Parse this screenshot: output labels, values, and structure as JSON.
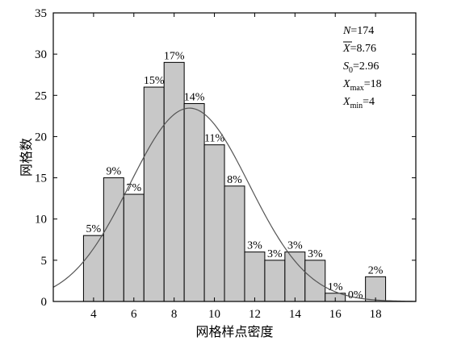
{
  "chart_data": {
    "type": "bar",
    "xlabel": "网格样点密度",
    "ylabel": "网格数",
    "ylim": [
      0,
      35
    ],
    "yticks": [
      0,
      5,
      10,
      15,
      20,
      25,
      30,
      35
    ],
    "xticks": [
      4,
      6,
      8,
      10,
      12,
      14,
      16,
      18
    ],
    "xlim": [
      2,
      20
    ],
    "bar_width": 1,
    "bars": [
      {
        "x": 4,
        "value": 8,
        "label": "5%"
      },
      {
        "x": 5,
        "value": 15,
        "label": "9%"
      },
      {
        "x": 6,
        "value": 13,
        "label": "7%"
      },
      {
        "x": 7,
        "value": 26,
        "label": "15%"
      },
      {
        "x": 8,
        "value": 29,
        "label": "17%"
      },
      {
        "x": 9,
        "value": 24,
        "label": "14%"
      },
      {
        "x": 10,
        "value": 19,
        "label": "11%"
      },
      {
        "x": 11,
        "value": 14,
        "label": "8%"
      },
      {
        "x": 12,
        "value": 6,
        "label": "3%"
      },
      {
        "x": 13,
        "value": 5,
        "label": "3%"
      },
      {
        "x": 14,
        "value": 6,
        "label": "3%"
      },
      {
        "x": 15,
        "value": 5,
        "label": "3%"
      },
      {
        "x": 16,
        "value": 1,
        "label": "1%"
      },
      {
        "x": 17,
        "value": 0,
        "label": "0%"
      },
      {
        "x": 18,
        "value": 3,
        "label": "2%"
      }
    ],
    "fit_curve": {
      "type": "normal",
      "mean": 8.76,
      "sd": 2.96,
      "n": 174,
      "bin_width": 1
    },
    "stats": [
      {
        "var": "N",
        "sub": "",
        "bar": false,
        "value": "=174"
      },
      {
        "var": "X",
        "sub": "",
        "bar": true,
        "value": "=8.76"
      },
      {
        "var": "S",
        "sub": "0",
        "bar": false,
        "value": "=2.96"
      },
      {
        "var": "X",
        "sub": "max",
        "bar": false,
        "value": "=18"
      },
      {
        "var": "X",
        "sub": "min",
        "bar": false,
        "value": "=4"
      }
    ]
  }
}
